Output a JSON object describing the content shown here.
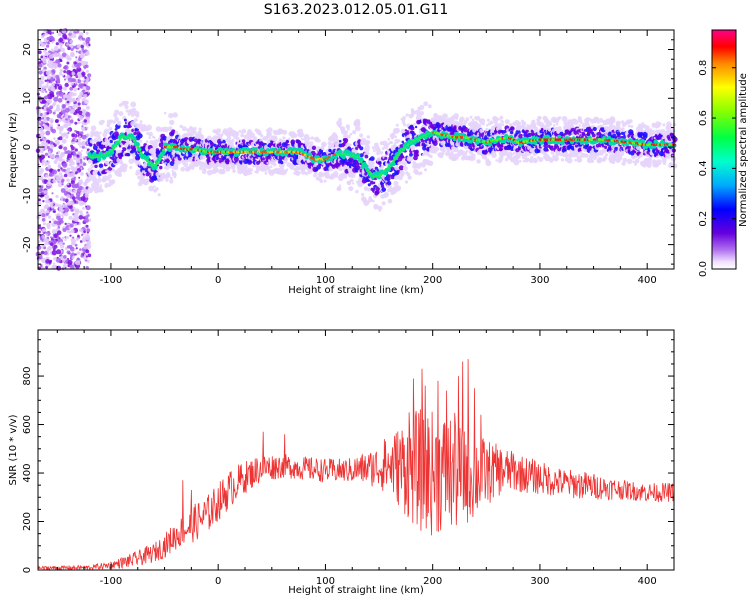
{
  "title": "S163.2023.012.05.01.G11",
  "chart_data": [
    {
      "type": "heatmap",
      "xlabel": "Height of straight line (km)",
      "ylabel": "Frequency (Hz)",
      "xlim": [
        -168,
        425
      ],
      "ylim": [
        -25,
        24
      ],
      "xticks": [
        -100,
        0,
        100,
        200,
        300,
        400
      ],
      "yticks": [
        -20,
        -10,
        0,
        10,
        20
      ],
      "colorbar": {
        "label": "Normalized spectral amplitude",
        "range": [
          0,
          0.95
        ],
        "ticks": [
          0.0,
          0.2,
          0.4,
          0.6,
          0.8
        ]
      },
      "ridge": {
        "x": [
          -120,
          -110,
          -100,
          -90,
          -80,
          -70,
          -60,
          -55,
          -50,
          -45,
          -40,
          -30,
          -20,
          -10,
          0,
          20,
          40,
          60,
          75,
          80,
          90,
          100,
          110,
          120,
          130,
          140,
          145,
          150,
          160,
          170,
          180,
          190,
          200,
          210,
          220,
          230,
          240,
          250,
          260,
          270,
          280,
          300,
          320,
          340,
          360,
          380,
          400,
          425
        ],
        "y": [
          -2,
          -2,
          -1,
          2,
          2,
          -2,
          -4,
          -3,
          0,
          0,
          0,
          -0.5,
          -0.5,
          -1,
          -1,
          -1,
          -1,
          -1,
          -1,
          -1.5,
          -2.5,
          -2.5,
          -1.5,
          -1.5,
          -2,
          -5,
          -6,
          -6,
          -4,
          -1,
          1,
          2,
          3,
          2.5,
          2,
          2,
          1.5,
          1,
          1.5,
          2,
          1,
          1.5,
          1.5,
          1.5,
          1.5,
          1,
          0.5,
          0.5
        ]
      }
    },
    {
      "type": "line",
      "xlabel": "Height of straight line (km)",
      "ylabel": "SNR (10 * v/v)",
      "xlim": [
        -168,
        425
      ],
      "ylim": [
        0,
        990
      ],
      "xticks": [
        -100,
        0,
        100,
        200,
        300,
        400
      ],
      "yticks": [
        0,
        200,
        400,
        600,
        800
      ],
      "line_color": "#ee3333",
      "envelope": {
        "x": [
          -168,
          -120,
          -100,
          -80,
          -60,
          -50,
          -40,
          -30,
          -20,
          -10,
          0,
          10,
          20,
          40,
          60,
          80,
          100,
          120,
          140,
          160,
          170,
          180,
          190,
          200,
          210,
          220,
          230,
          240,
          250,
          260,
          270,
          280,
          300,
          320,
          340,
          360,
          380,
          400,
          425
        ],
        "mean": [
          8,
          10,
          20,
          40,
          70,
          100,
          140,
          170,
          200,
          230,
          280,
          330,
          370,
          420,
          430,
          420,
          410,
          410,
          420,
          430,
          430,
          420,
          410,
          400,
          400,
          400,
          400,
          390,
          400,
          410,
          410,
          400,
          380,
          360,
          350,
          340,
          330,
          320,
          320
        ],
        "spread": [
          8,
          10,
          15,
          30,
          40,
          50,
          60,
          70,
          80,
          80,
          80,
          80,
          70,
          60,
          50,
          50,
          50,
          50,
          70,
          120,
          180,
          230,
          260,
          260,
          250,
          250,
          220,
          180,
          140,
          110,
          90,
          80,
          70,
          60,
          60,
          50,
          40,
          40,
          40
        ],
        "peaks": [
          [
            -33,
            370
          ],
          [
            -25,
            330
          ],
          [
            -12,
            250
          ],
          [
            42,
            570
          ],
          [
            62,
            560
          ],
          [
            155,
            540
          ],
          [
            178,
            650
          ],
          [
            182,
            790
          ],
          [
            190,
            830
          ],
          [
            193,
            760
          ],
          [
            205,
            780
          ],
          [
            213,
            740
          ],
          [
            221,
            610
          ],
          [
            224,
            800
          ],
          [
            228,
            860
          ],
          [
            233,
            870
          ],
          [
            239,
            750
          ],
          [
            245,
            640
          ],
          [
            275,
            480
          ]
        ]
      }
    }
  ]
}
